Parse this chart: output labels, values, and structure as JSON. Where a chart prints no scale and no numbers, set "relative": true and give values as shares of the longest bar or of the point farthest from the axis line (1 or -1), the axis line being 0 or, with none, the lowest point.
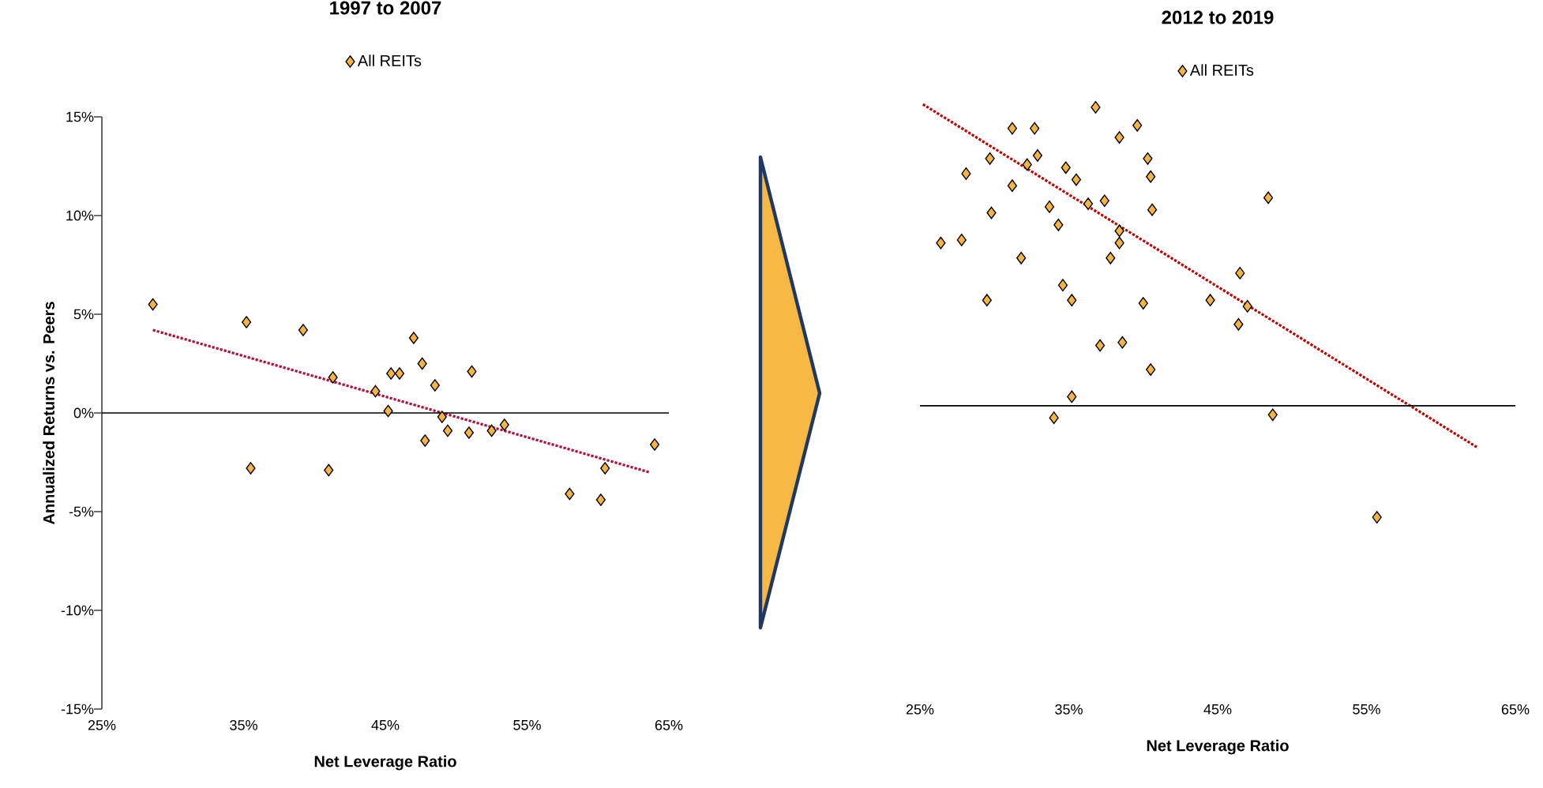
{
  "chart_data": [
    {
      "type": "scatter",
      "title": "1997 to 2007",
      "xlabel": "Net Leverage Ratio",
      "ylabel": "Annualized Returns vs. Peers",
      "xlim": [
        25,
        65
      ],
      "ylim": [
        -15,
        15
      ],
      "xticks": [
        {
          "value": 25,
          "label": "25%"
        },
        {
          "value": 35,
          "label": "35%"
        },
        {
          "value": 45,
          "label": "45%"
        },
        {
          "value": 55,
          "label": "55%"
        },
        {
          "value": 65,
          "label": "65%"
        }
      ],
      "yticks": [
        {
          "value": -15,
          "label": "-15%"
        },
        {
          "value": -10,
          "label": "-10%"
        },
        {
          "value": -5,
          "label": "-5%"
        },
        {
          "value": 0,
          "label": "0%"
        },
        {
          "value": 5,
          "label": "5%"
        },
        {
          "value": 10,
          "label": "10%"
        },
        {
          "value": 15,
          "label": "15%"
        }
      ],
      "legend": "top",
      "marker": "diamond",
      "ref_lines": [
        {
          "axis": "y",
          "value": 0,
          "color": "#000000"
        }
      ],
      "series": [
        {
          "name": "All REITs",
          "color": "#f7b441",
          "x": [
            28.6,
            35.2,
            39.2,
            41.3,
            44.3,
            45.4,
            46.0,
            47.0,
            47.6,
            48.5,
            51.1,
            45.2,
            49.0,
            49.4,
            47.8,
            50.9,
            52.5,
            53.4,
            35.5,
            41.0,
            58.0,
            60.2,
            60.5,
            64.0
          ],
          "values": [
            5.5,
            4.6,
            4.2,
            1.8,
            1.1,
            2.0,
            2.0,
            3.8,
            2.5,
            1.4,
            2.1,
            0.1,
            -0.2,
            -0.9,
            -1.4,
            -1.0,
            -0.9,
            -0.6,
            -2.8,
            -2.9,
            -4.1,
            -4.4,
            -2.8,
            -1.6
          ]
        },
        {
          "type": "line",
          "color": "#b0103a",
          "line_style": "dotted",
          "marker": "none",
          "x": [
            28.6,
            63.6
          ],
          "values": [
            4.2,
            -3.0
          ]
        }
      ]
    },
    {
      "type": "scatter",
      "title": "2012 to 2019",
      "xlabel": "Net Leverage Ratio",
      "xlim": [
        25,
        65
      ],
      "relative": true,
      "xticks": [
        {
          "value": 25,
          "label": "25%"
        },
        {
          "value": 35,
          "label": "35%"
        },
        {
          "value": 45,
          "label": "45%"
        },
        {
          "value": 55,
          "label": "55%"
        },
        {
          "value": 65,
          "label": "65%"
        }
      ],
      "tick_labels": "x",
      "legend": "top",
      "marker": "diamond",
      "series": [
        {
          "name": "All REITs",
          "color": "#f7b441",
          "x": [
            36.8,
            31.2,
            32.7,
            39.6,
            38.4,
            32.9,
            29.7,
            32.2,
            28.1,
            34.8,
            40.3,
            35.5,
            40.5,
            31.2,
            36.3,
            37.4,
            33.7,
            40.6,
            48.4,
            29.8,
            34.3,
            38.4,
            38.4,
            26.4,
            27.8,
            31.8,
            37.8,
            46.5,
            34.6,
            35.2,
            29.5,
            40.0,
            44.5,
            47.0,
            46.4,
            37.1,
            38.6,
            40.5,
            35.2,
            34.0,
            48.7,
            55.7
          ],
          "values": [
            0.99,
            0.92,
            0.92,
            0.93,
            0.89,
            0.83,
            0.82,
            0.8,
            0.77,
            0.79,
            0.82,
            0.75,
            0.76,
            0.73,
            0.67,
            0.68,
            0.66,
            0.65,
            0.69,
            0.64,
            0.6,
            0.58,
            0.54,
            0.54,
            0.55,
            0.49,
            0.49,
            0.44,
            0.4,
            0.35,
            0.35,
            0.34,
            0.35,
            0.33,
            0.27,
            0.2,
            0.21,
            0.12,
            0.03,
            -0.04,
            -0.03,
            -0.37
          ]
        },
        {
          "type": "line",
          "color": "#c00000",
          "line_style": "dotted",
          "marker": "none",
          "x": [
            25.2,
            62.5
          ],
          "values": [
            1,
            -0.14
          ]
        }
      ]
    }
  ]
}
